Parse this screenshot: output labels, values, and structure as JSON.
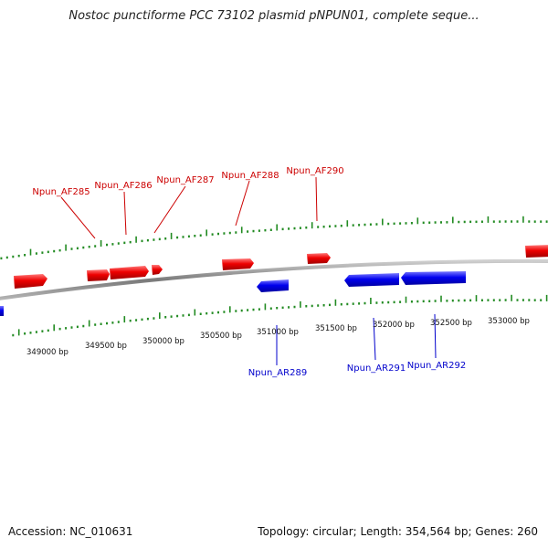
{
  "title": "Nostoc punctiforme PCC 73102 plasmid pNPUN01, complete seque...",
  "footer": {
    "accession": "Accession: NC_010631",
    "summary": "Topology: circular; Length: 354,564 bp; Genes: 260"
  },
  "colors": {
    "forward": "#ff0000",
    "reverse": "#0000ff",
    "forward_label": "#cc0000",
    "reverse_label": "#0000cc",
    "tick": "#228b22",
    "backbone": "#888888"
  },
  "map": {
    "ticks": [
      "349000 bp",
      "349500 bp",
      "350000 bp",
      "350500 bp",
      "351000 bp",
      "351500 bp",
      "352000 bp",
      "352500 bp",
      "353000 bp"
    ],
    "forward_genes": [
      {
        "label": "Npun_AF285"
      },
      {
        "label": "Npun_AF286"
      },
      {
        "label": "Npun_AF287"
      },
      {
        "label": "Npun_AF288"
      },
      {
        "label": "Npun_AF290"
      }
    ],
    "reverse_genes": [
      {
        "label": "Npun_AR289"
      },
      {
        "label": "Npun_AR291"
      },
      {
        "label": "Npun_AR292"
      }
    ]
  }
}
